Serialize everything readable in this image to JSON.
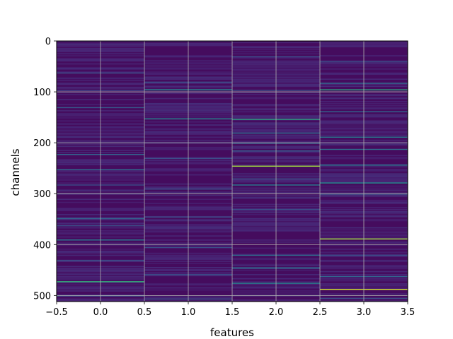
{
  "chart_data": {
    "type": "heatmap",
    "title": "",
    "xlabel": "features",
    "ylabel": "channels",
    "xlim": [
      -0.5,
      3.5
    ],
    "ylim": [
      512,
      0
    ],
    "x_ticks": [
      -0.5,
      0.0,
      0.5,
      1.0,
      1.5,
      2.0,
      2.5,
      3.0,
      3.5
    ],
    "x_tick_labels": [
      "−0.5",
      "0.0",
      "0.5",
      "1.0",
      "1.5",
      "2.0",
      "2.5",
      "3.0",
      "3.5"
    ],
    "y_ticks": [
      0,
      100,
      200,
      300,
      400,
      500
    ],
    "y_tick_labels": [
      "0",
      "100",
      "200",
      "300",
      "400",
      "500"
    ],
    "grid": true,
    "colormap": "viridis",
    "n_rows": 512,
    "columns": [
      0,
      1,
      2,
      3
    ],
    "highlight_rows": [
      {
        "column": 0,
        "rows": [
          {
            "row": 62,
            "value": 0.3
          },
          {
            "row": 96,
            "value": 0.25
          },
          {
            "row": 130,
            "value": 0.35
          },
          {
            "row": 222,
            "value": 0.4
          },
          {
            "row": 252,
            "value": 0.45
          },
          {
            "row": 282,
            "value": 0.3
          },
          {
            "row": 348,
            "value": 0.4
          },
          {
            "row": 362,
            "value": 0.3
          },
          {
            "row": 390,
            "value": 0.5
          },
          {
            "row": 430,
            "value": 0.3
          },
          {
            "row": 472,
            "value": 0.75
          },
          {
            "row": 500,
            "value": 0.3
          }
        ]
      },
      {
        "column": 1,
        "rows": [
          {
            "row": 80,
            "value": 0.3
          },
          {
            "row": 95,
            "value": 0.6
          },
          {
            "row": 152,
            "value": 0.55
          },
          {
            "row": 230,
            "value": 0.3
          },
          {
            "row": 290,
            "value": 0.3
          },
          {
            "row": 345,
            "value": 0.3
          },
          {
            "row": 405,
            "value": 0.3
          },
          {
            "row": 458,
            "value": 0.3
          },
          {
            "row": 506,
            "value": 0.3
          }
        ]
      },
      {
        "column": 2,
        "rows": [
          {
            "row": 30,
            "value": 0.3
          },
          {
            "row": 96,
            "value": 0.3
          },
          {
            "row": 153,
            "value": 0.7
          },
          {
            "row": 180,
            "value": 0.45
          },
          {
            "row": 200,
            "value": 0.4
          },
          {
            "row": 215,
            "value": 0.35
          },
          {
            "row": 245,
            "value": 0.9
          },
          {
            "row": 270,
            "value": 0.3
          },
          {
            "row": 282,
            "value": 0.5
          },
          {
            "row": 330,
            "value": 0.3
          },
          {
            "row": 420,
            "value": 0.45
          },
          {
            "row": 445,
            "value": 0.5
          },
          {
            "row": 475,
            "value": 0.55
          }
        ]
      },
      {
        "column": 3,
        "rows": [
          {
            "row": 40,
            "value": 0.3
          },
          {
            "row": 82,
            "value": 0.45
          },
          {
            "row": 95,
            "value": 0.7
          },
          {
            "row": 138,
            "value": 0.4
          },
          {
            "row": 188,
            "value": 0.5
          },
          {
            "row": 212,
            "value": 0.45
          },
          {
            "row": 243,
            "value": 0.5
          },
          {
            "row": 278,
            "value": 0.6
          },
          {
            "row": 300,
            "value": 0.3
          },
          {
            "row": 388,
            "value": 0.9
          },
          {
            "row": 420,
            "value": 0.3
          },
          {
            "row": 462,
            "value": 0.4
          },
          {
            "row": 487,
            "value": 0.95
          },
          {
            "row": 505,
            "value": 0.3
          }
        ]
      }
    ]
  }
}
